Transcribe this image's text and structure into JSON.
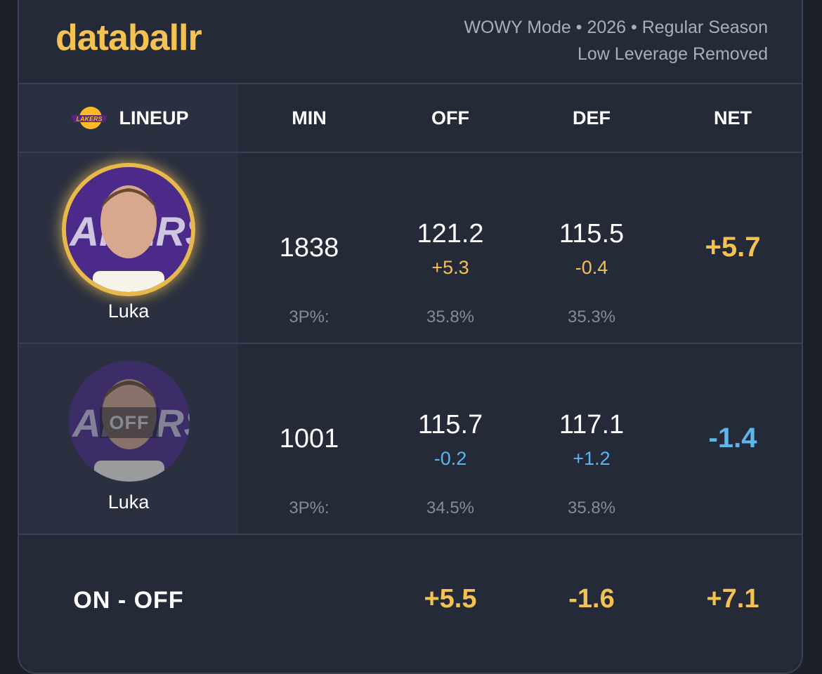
{
  "header": {
    "brand": "databallr",
    "meta_line1": "WOWY Mode • 2026 • Regular Season",
    "meta_line2": "Low Leverage Removed"
  },
  "columns": {
    "lineup": "LINEUP",
    "min": "MIN",
    "off": "OFF",
    "def": "DEF",
    "net": "NET"
  },
  "team_logo": {
    "name": "lakers-logo-icon",
    "colors": [
      "#552583",
      "#fdb927"
    ]
  },
  "rows": [
    {
      "player": "Luka",
      "status_tag": "",
      "min": "1838",
      "off": "121.2",
      "off_delta": "+5.3",
      "def": "115.5",
      "def_delta": "-0.4",
      "net": "+5.7",
      "tp_label": "3P%:",
      "tp_off": "35.8%",
      "tp_def": "35.3%"
    },
    {
      "player": "Luka",
      "status_tag": "OFF",
      "min": "1001",
      "off": "115.7",
      "off_delta": "-0.2",
      "def": "117.1",
      "def_delta": "+1.2",
      "net": "-1.4",
      "tp_label": "3P%:",
      "tp_off": "34.5%",
      "tp_def": "35.8%"
    }
  ],
  "summary": {
    "label": "ON - OFF",
    "off": "+5.5",
    "def": "-1.6",
    "net": "+7.1"
  },
  "colors": {
    "accent_gold": "#f3c253",
    "accent_blue": "#5fb4ea",
    "card_bg": "#242a38"
  }
}
